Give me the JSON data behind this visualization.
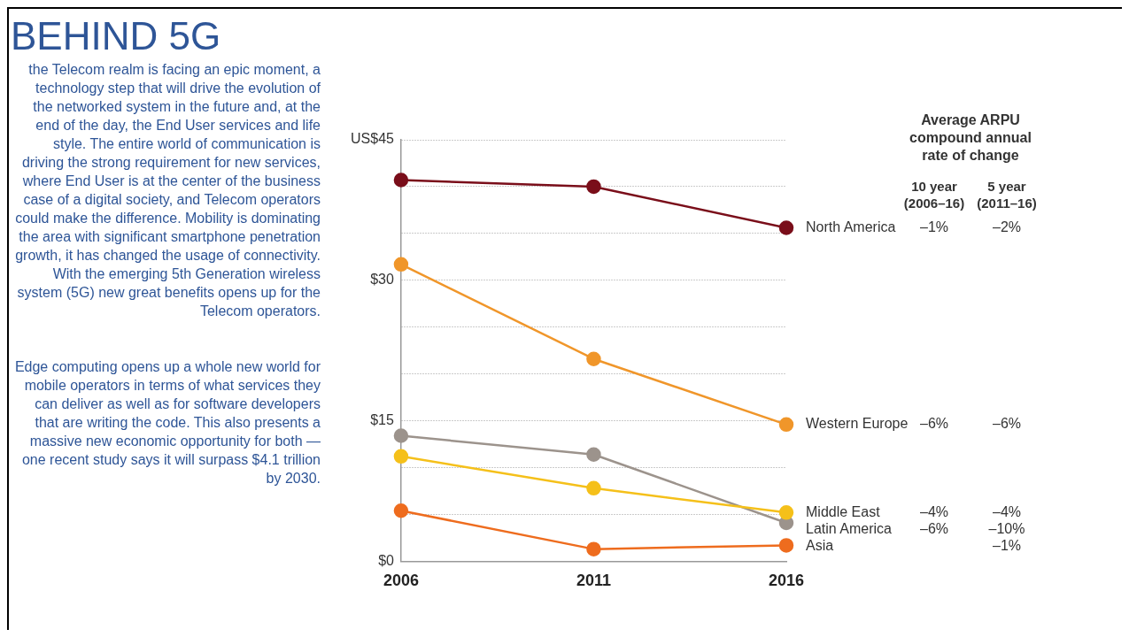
{
  "chart_data": {
    "type": "line",
    "title": "BEHIND 5G",
    "legend_title": "Average ARPU compound annual rate of change",
    "categories": [
      "2006",
      "2011",
      "2016"
    ],
    "series": [
      {
        "name": "North America",
        "color": "#7a0e1a",
        "values": [
          40.7,
          40.0,
          35.6
        ]
      },
      {
        "name": "Western Europe",
        "color": "#f0962a",
        "values": [
          31.7,
          21.6,
          14.6
        ]
      },
      {
        "name": "Middle East",
        "color": "#f5c01a",
        "values": [
          11.2,
          7.8,
          5.2
        ]
      },
      {
        "name": "Latin America",
        "color": "#9c938c",
        "values": [
          13.4,
          11.4,
          4.1
        ]
      },
      {
        "name": "Asia",
        "color": "#ee6c1e",
        "values": [
          5.4,
          1.3,
          1.7
        ]
      }
    ],
    "ylim": [
      0,
      45
    ],
    "yticks": [
      {
        "value": 0,
        "label": "$0"
      },
      {
        "value": 5,
        "label": null
      },
      {
        "value": 10,
        "label": null
      },
      {
        "value": 15,
        "label": "$15"
      },
      {
        "value": 20,
        "label": null
      },
      {
        "value": 25,
        "label": null
      },
      {
        "value": 30,
        "label": "$30"
      },
      {
        "value": 35,
        "label": null
      },
      {
        "value": 40,
        "label": null
      },
      {
        "value": 45,
        "label": "US$45"
      }
    ],
    "grid": "y",
    "legend": false,
    "marker": "circle",
    "line_style": "solid",
    "annotations": [
      "the Telecom realm is facing an epic moment, a technology step that will drive the evolution of the networked system in the future and, at the end of the day, the End User services and life style. The entire world of communication is driving the strong requirement for new services, where End User is at the center of the business case of a digital society, and Telecom operators could make the difference. Mobility is dominating the area with significant smartphone penetration growth, it has changed the usage of connectivity. With the emerging 5th Generation wireless system (5G) new great benefits opens up for the Telecom operators.",
      "Edge computing opens up a whole new world for mobile operators in terms of what services they can deliver as well as for software developers that are writing the code. This also presents a massive new economic opportunity for both — one recent study says it will surpass $4.1 trillion by 2030.",
      "10 year (2006–16)",
      "5 year (2011–16)",
      "–1%",
      "–2%",
      "–6%",
      "–6%",
      "–4%",
      "–4%",
      "–6%",
      "–10%",
      "–1%"
    ]
  }
}
